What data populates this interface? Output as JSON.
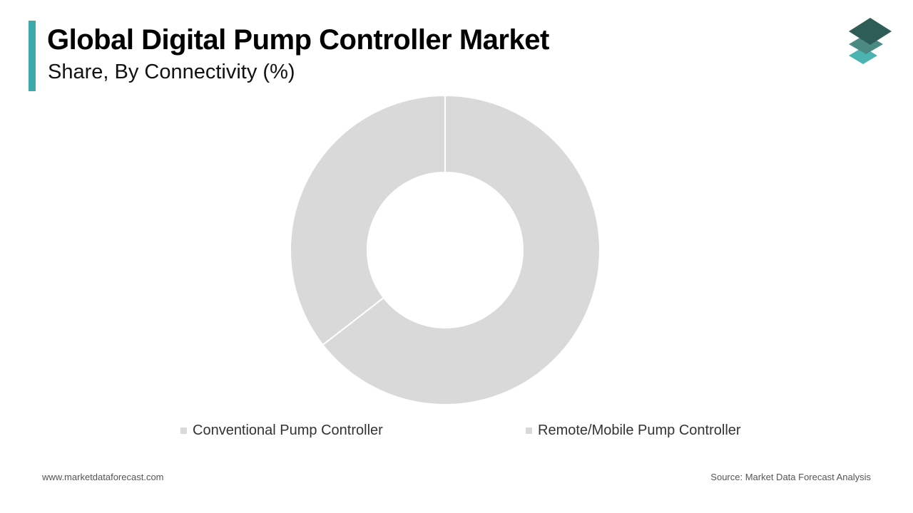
{
  "header": {
    "title": "Global Digital Pump Controller Market",
    "subtitle": "Share, By Connectivity (%)"
  },
  "colors": {
    "accent": "#3fa9a9",
    "logo_top": "#2e5c57",
    "logo_mid": "#4a8a83",
    "logo_bottom": "#4bb3b0",
    "slice": "#d9d9d9",
    "slice_border": "#ffffff"
  },
  "logo": {
    "icon": "stacked-layers-icon"
  },
  "chart_data": {
    "type": "pie",
    "variant": "donut",
    "title": "Global Digital Pump Controller Market",
    "subtitle": "Share, By Connectivity (%)",
    "categories": [
      "Conventional Pump Controller",
      "Remote/Mobile Pump Controller"
    ],
    "values": [
      64.5,
      35.5
    ],
    "colors": [
      "#d9d9d9",
      "#d9d9d9"
    ],
    "start_angle": "12 o'clock, clockwise",
    "legend_position": "bottom"
  },
  "footer": {
    "website": "www.marketdataforecast.com",
    "source": "Source: Market Data Forecast Analysis"
  }
}
